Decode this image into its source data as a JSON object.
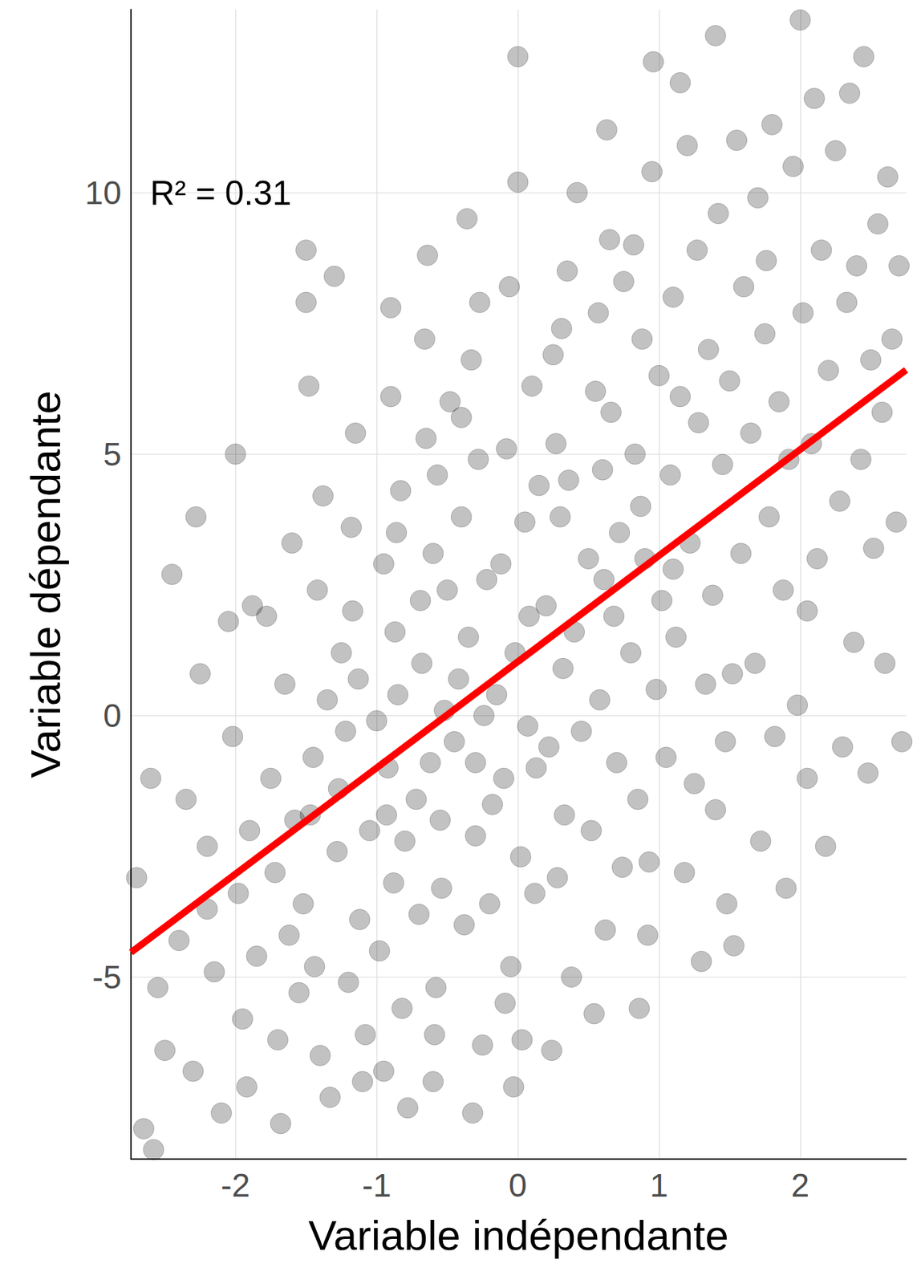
{
  "chart_data": {
    "type": "scatter",
    "x_label": "Variable indépendante",
    "y_label": "Variable dépendante",
    "annotation": "R² = 0.31",
    "xlim": [
      -2.74,
      2.75
    ],
    "ylim": [
      -8.48,
      13.5
    ],
    "xticks": [
      -2,
      -1,
      0,
      1,
      2
    ],
    "yticks": [
      -5,
      0,
      5,
      10
    ],
    "grid": true,
    "series": [
      {
        "type": "scatter",
        "color": "#000000",
        "marker": "circle",
        "x": [
          -2.65,
          -2.55,
          -2.7,
          -2.5,
          -2.6,
          -2.45,
          -2.58,
          -2.4,
          -2.3,
          -2.2,
          -2.15,
          -2.25,
          -2.1,
          -2.35,
          -2.05,
          -2.2,
          -2.28,
          -2.0,
          -1.95,
          -1.9,
          -2.02,
          -1.92,
          -1.98,
          -1.88,
          -1.85,
          -1.75,
          -1.7,
          -1.65,
          -1.72,
          -1.6,
          -1.68,
          -1.62,
          -1.78,
          -1.58,
          -1.55,
          -1.5,
          -1.48,
          -1.45,
          -1.52,
          -1.42,
          -1.4,
          -1.38,
          -1.47,
          -1.35,
          -1.44,
          -1.5,
          -1.33,
          -1.28,
          -1.25,
          -1.2,
          -1.18,
          -1.22,
          -1.15,
          -1.12,
          -1.1,
          -1.27,
          -1.17,
          -1.08,
          -1.3,
          -1.13,
          -1.05,
          -0.98,
          -0.95,
          -0.92,
          -0.9,
          -0.88,
          -0.85,
          -0.95,
          -0.83,
          -0.8,
          -0.87,
          -1.0,
          -0.82,
          -0.9,
          -0.78,
          -0.86,
          -0.93,
          -0.7,
          -0.68,
          -0.65,
          -0.62,
          -0.6,
          -0.58,
          -0.55,
          -0.66,
          -0.52,
          -0.6,
          -0.5,
          -0.57,
          -0.72,
          -0.54,
          -0.64,
          -0.48,
          -0.59,
          -0.69,
          -0.45,
          -0.4,
          -0.38,
          -0.35,
          -0.33,
          -0.3,
          -0.28,
          -0.25,
          -0.42,
          -0.22,
          -0.3,
          -0.36,
          -0.2,
          -0.27,
          -0.32,
          -0.24,
          -0.4,
          -0.18,
          -0.12,
          -0.1,
          -0.08,
          -0.05,
          -0.02,
          0.0,
          0.02,
          0.05,
          0.07,
          -0.06,
          0.1,
          0.03,
          -0.15,
          0.12,
          0.08,
          -0.03,
          0.15,
          0.0,
          0.13,
          -0.09,
          0.2,
          0.22,
          0.25,
          0.28,
          0.3,
          0.32,
          0.35,
          0.38,
          0.27,
          0.4,
          0.33,
          0.42,
          0.24,
          0.36,
          0.45,
          0.31,
          0.5,
          0.52,
          0.55,
          0.58,
          0.6,
          0.62,
          0.65,
          0.68,
          0.7,
          0.57,
          0.63,
          0.72,
          0.54,
          0.66,
          0.74,
          0.61,
          0.75,
          0.8,
          0.83,
          0.85,
          0.88,
          0.9,
          0.92,
          0.95,
          0.98,
          0.87,
          1.0,
          0.93,
          0.82,
          1.02,
          0.96,
          0.86,
          1.05,
          1.08,
          1.1,
          1.12,
          1.15,
          1.18,
          1.2,
          1.22,
          1.25,
          1.28,
          1.15,
          1.3,
          1.1,
          1.27,
          1.33,
          1.35,
          1.38,
          1.4,
          1.42,
          1.45,
          1.48,
          1.5,
          1.52,
          1.55,
          1.4,
          1.58,
          1.47,
          1.6,
          1.53,
          1.65,
          1.68,
          1.7,
          1.72,
          1.75,
          1.78,
          1.8,
          1.82,
          1.85,
          1.88,
          1.9,
          1.76,
          1.92,
          1.95,
          1.98,
          2.0,
          2.02,
          2.05,
          2.08,
          2.1,
          2.12,
          2.15,
          2.18,
          2.2,
          2.05,
          2.25,
          2.28,
          2.3,
          2.33,
          2.35,
          2.38,
          2.4,
          2.43,
          2.45,
          2.48,
          2.5,
          2.52,
          2.55,
          2.58,
          2.6,
          2.62,
          2.65,
          2.68,
          2.7,
          2.72
        ],
        "values": [
          -7.9,
          -5.2,
          -3.1,
          -6.4,
          -1.2,
          2.7,
          -8.3,
          -4.3,
          -6.8,
          -2.5,
          -4.9,
          0.8,
          -7.6,
          -1.6,
          1.8,
          -3.7,
          3.8,
          5.0,
          -5.8,
          -2.2,
          -0.4,
          -7.1,
          -3.4,
          2.1,
          -4.6,
          -1.2,
          -6.2,
          0.6,
          -3.0,
          3.3,
          -7.8,
          -4.2,
          1.9,
          -2.0,
          -5.3,
          8.9,
          6.3,
          -0.8,
          -3.6,
          2.4,
          -6.5,
          4.2,
          -1.9,
          0.3,
          -4.8,
          7.9,
          -7.3,
          -2.6,
          1.2,
          -5.1,
          3.6,
          -0.3,
          5.4,
          -3.9,
          -7.0,
          -1.4,
          2.0,
          -6.1,
          8.4,
          0.7,
          -2.2,
          -4.5,
          2.9,
          -1.0,
          6.1,
          -3.2,
          0.4,
          -6.8,
          4.3,
          -2.4,
          1.6,
          -0.1,
          -5.6,
          7.8,
          -7.5,
          3.5,
          -1.9,
          -3.8,
          1.0,
          5.3,
          -0.9,
          3.1,
          -5.2,
          -2.0,
          7.2,
          0.1,
          -7.0,
          2.4,
          4.6,
          -1.6,
          -3.3,
          8.8,
          6.0,
          -6.1,
          2.2,
          -0.5,
          3.8,
          -4.0,
          1.5,
          6.8,
          -2.3,
          4.9,
          -6.3,
          0.7,
          2.6,
          -0.9,
          9.5,
          -3.6,
          7.9,
          -7.6,
          0.0,
          5.7,
          -1.7,
          2.9,
          -1.2,
          5.1,
          -4.8,
          1.2,
          12.6,
          -2.7,
          3.7,
          -0.2,
          8.2,
          6.3,
          -6.2,
          0.4,
          -3.4,
          1.9,
          -7.1,
          4.4,
          10.2,
          -1.0,
          -5.5,
          2.1,
          -0.6,
          6.9,
          -3.1,
          3.8,
          0.9,
          8.5,
          -5.0,
          5.2,
          1.6,
          -1.9,
          10.0,
          -6.4,
          4.5,
          -0.3,
          7.4,
          3.0,
          -2.2,
          6.2,
          0.3,
          4.7,
          -4.1,
          9.1,
          1.9,
          -0.9,
          7.7,
          11.2,
          3.5,
          -5.7,
          5.8,
          -2.9,
          2.6,
          8.3,
          1.2,
          5.0,
          -1.6,
          7.2,
          3.0,
          -4.2,
          10.4,
          0.5,
          4.0,
          6.5,
          -2.8,
          9.0,
          2.2,
          12.5,
          -5.6,
          -0.8,
          4.6,
          8.0,
          1.5,
          6.1,
          -3.0,
          10.9,
          3.3,
          -1.3,
          5.6,
          12.1,
          -4.7,
          2.8,
          8.9,
          0.6,
          7.0,
          2.3,
          -1.8,
          9.6,
          4.8,
          -3.6,
          6.4,
          0.8,
          11.0,
          13.0,
          3.1,
          -0.5,
          8.2,
          -4.4,
          5.4,
          1.0,
          9.9,
          -2.4,
          7.3,
          3.8,
          11.3,
          -0.4,
          6.0,
          2.4,
          -3.3,
          8.7,
          4.9,
          10.5,
          0.2,
          13.3,
          7.7,
          -1.2,
          5.2,
          11.8,
          3.0,
          8.9,
          -2.5,
          6.6,
          2.0,
          10.8,
          4.1,
          -0.6,
          7.9,
          11.9,
          1.4,
          8.6,
          4.9,
          12.6,
          -1.1,
          6.8,
          3.2,
          9.4,
          5.8,
          1.0,
          10.3,
          7.2,
          3.7,
          8.6,
          -0.5
        ]
      },
      {
        "type": "line",
        "color": "#ff0000",
        "line_style": "solid",
        "x": [
          -2.74,
          2.75
        ],
        "values": [
          -4.53,
          6.61
        ]
      }
    ]
  }
}
